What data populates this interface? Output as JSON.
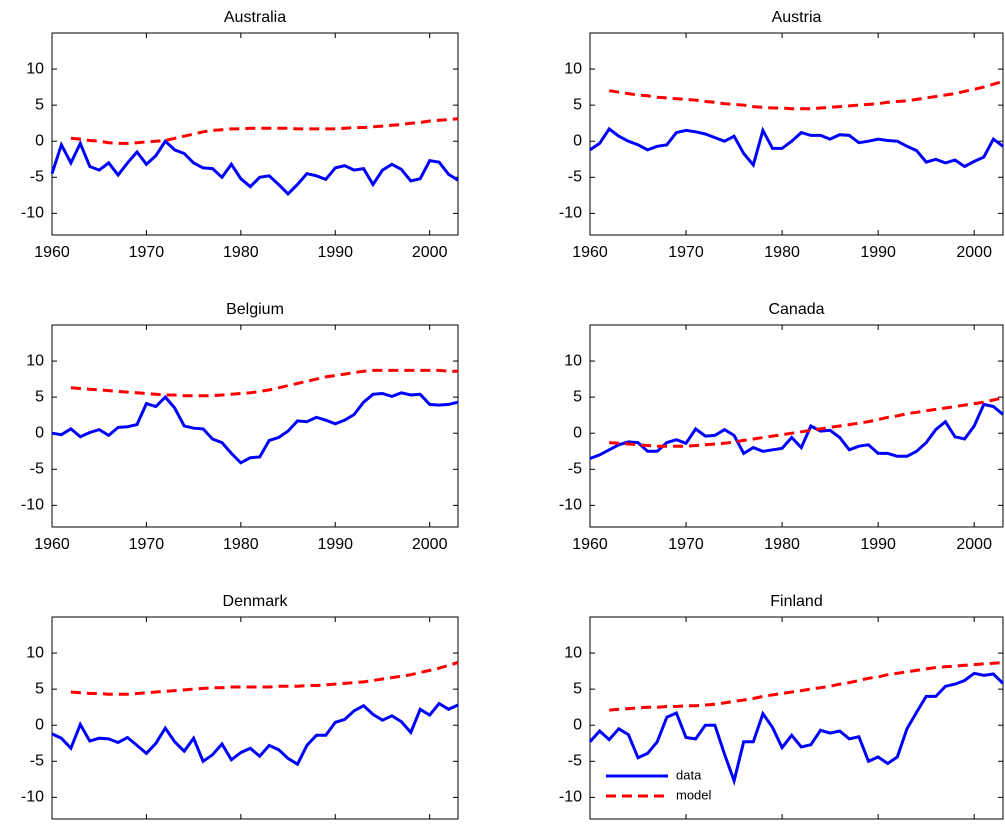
{
  "chart_data": [
    {
      "type": "line",
      "title": "Australia",
      "x": [
        1960,
        1961,
        1962,
        1963,
        1964,
        1965,
        1966,
        1967,
        1968,
        1969,
        1970,
        1971,
        1972,
        1973,
        1974,
        1975,
        1976,
        1977,
        1978,
        1979,
        1980,
        1981,
        1982,
        1983,
        1984,
        1985,
        1986,
        1987,
        1988,
        1989,
        1990,
        1991,
        1992,
        1993,
        1994,
        1995,
        1996,
        1997,
        1998,
        1999,
        2000,
        2001,
        2002,
        2003
      ],
      "series": [
        {
          "color": "#0000ff",
          "dash": false,
          "values": [
            -4.5,
            -0.5,
            -3,
            -0.3,
            -3.5,
            -4,
            -3,
            -4.7,
            -3,
            -1.5,
            -3.2,
            -2,
            0,
            -1.2,
            -1.7,
            -3,
            -3.7,
            -3.8,
            -5,
            -3.2,
            -5.2,
            -6.3,
            -5,
            -4.8,
            -6,
            -7.3,
            -6,
            -4.5,
            -4.8,
            -5.3,
            -3.7,
            -3.4,
            -4,
            -3.8,
            -6,
            -4,
            -3.2,
            -3.9,
            -5.5,
            -5.2,
            -2.7,
            -2.9,
            -4.6,
            -5.4
          ]
        },
        {
          "color": "#ff0000",
          "dash": true,
          "values": [
            null,
            null,
            0.4,
            0.3,
            0.1,
            0,
            -0.2,
            -0.3,
            -0.3,
            -0.2,
            -0.1,
            0,
            0.1,
            0.4,
            0.7,
            1,
            1.3,
            1.5,
            1.6,
            1.7,
            1.7,
            1.8,
            1.8,
            1.8,
            1.8,
            1.8,
            1.7,
            1.7,
            1.7,
            1.7,
            1.7,
            1.8,
            1.9,
            1.9,
            2,
            2.1,
            2.2,
            2.3,
            2.5,
            2.6,
            2.8,
            2.9,
            3,
            3.1
          ]
        }
      ],
      "xlim": [
        1960,
        2003
      ],
      "ylim": [
        -13,
        15
      ],
      "xticks": [
        1960,
        1970,
        1980,
        1990,
        2000
      ],
      "yticks": [
        -10,
        -5,
        0,
        5,
        10
      ]
    },
    {
      "type": "line",
      "title": "Austria",
      "x": [
        1960,
        1961,
        1962,
        1963,
        1964,
        1965,
        1966,
        1967,
        1968,
        1969,
        1970,
        1971,
        1972,
        1973,
        1974,
        1975,
        1976,
        1977,
        1978,
        1979,
        1980,
        1981,
        1982,
        1983,
        1984,
        1985,
        1986,
        1987,
        1988,
        1989,
        1990,
        1991,
        1992,
        1993,
        1994,
        1995,
        1996,
        1997,
        1998,
        1999,
        2000,
        2001,
        2002,
        2003
      ],
      "series": [
        {
          "color": "#0000ff",
          "dash": false,
          "values": [
            -1.2,
            -0.3,
            1.7,
            0.7,
            0,
            -0.5,
            -1.2,
            -0.7,
            -0.5,
            1.2,
            1.5,
            1.3,
            1,
            0.5,
            0,
            0.7,
            -1.7,
            -3.3,
            1.5,
            -1,
            -1,
            0,
            1.2,
            0.8,
            0.8,
            0.3,
            0.9,
            0.8,
            -0.2,
            0,
            0.3,
            0.1,
            0,
            -0.7,
            -1.3,
            -2.9,
            -2.5,
            -3,
            -2.6,
            -3.5,
            -2.8,
            -2.2,
            0.3,
            -0.7
          ]
        },
        {
          "color": "#ff0000",
          "dash": true,
          "values": [
            null,
            null,
            7,
            6.8,
            6.6,
            6.4,
            6.3,
            6.1,
            6,
            5.9,
            5.8,
            5.7,
            5.5,
            5.4,
            5.2,
            5.1,
            5,
            4.8,
            4.7,
            4.6,
            4.6,
            4.5,
            4.5,
            4.5,
            4.6,
            4.7,
            4.8,
            4.9,
            5,
            5.1,
            5.2,
            5.4,
            5.5,
            5.6,
            5.8,
            6,
            6.2,
            6.4,
            6.6,
            6.9,
            7.2,
            7.5,
            7.9,
            8.3
          ]
        }
      ],
      "xlim": [
        1960,
        2003
      ],
      "ylim": [
        -13,
        15
      ],
      "xticks": [
        1960,
        1970,
        1980,
        1990,
        2000
      ],
      "yticks": [
        -10,
        -5,
        0,
        5,
        10
      ]
    },
    {
      "type": "line",
      "title": "Belgium",
      "x": [
        1960,
        1961,
        1962,
        1963,
        1964,
        1965,
        1966,
        1967,
        1968,
        1969,
        1970,
        1971,
        1972,
        1973,
        1974,
        1975,
        1976,
        1977,
        1978,
        1979,
        1980,
        1981,
        1982,
        1983,
        1984,
        1985,
        1986,
        1987,
        1988,
        1989,
        1990,
        1991,
        1992,
        1993,
        1994,
        1995,
        1996,
        1997,
        1998,
        1999,
        2000,
        2001,
        2002,
        2003
      ],
      "series": [
        {
          "color": "#0000ff",
          "dash": false,
          "values": [
            0,
            -0.2,
            0.6,
            -0.5,
            0.1,
            0.5,
            -0.3,
            0.8,
            0.9,
            1.2,
            4.1,
            3.7,
            5,
            3.5,
            1,
            0.7,
            0.6,
            -0.8,
            -1.3,
            -2.8,
            -4.1,
            -3.4,
            -3.3,
            -1,
            -0.6,
            0.3,
            1.7,
            1.6,
            2.2,
            1.8,
            1.3,
            1.8,
            2.6,
            4.3,
            5.4,
            5.5,
            5.1,
            5.6,
            5.3,
            5.4,
            4,
            3.9,
            4,
            4.3
          ]
        },
        {
          "color": "#ff0000",
          "dash": true,
          "values": [
            null,
            null,
            6.3,
            6.2,
            6.1,
            6,
            5.9,
            5.8,
            5.7,
            5.6,
            5.5,
            5.4,
            5.3,
            5.3,
            5.2,
            5.2,
            5.2,
            5.2,
            5.3,
            5.4,
            5.5,
            5.6,
            5.8,
            6,
            6.3,
            6.6,
            6.9,
            7.2,
            7.5,
            7.8,
            8,
            8.2,
            8.4,
            8.6,
            8.7,
            8.7,
            8.7,
            8.7,
            8.7,
            8.7,
            8.7,
            8.7,
            8.6,
            8.6
          ]
        }
      ],
      "xlim": [
        1960,
        2003
      ],
      "ylim": [
        -13,
        15
      ],
      "xticks": [
        1960,
        1970,
        1980,
        1990,
        2000
      ],
      "yticks": [
        -10,
        -5,
        0,
        5,
        10
      ]
    },
    {
      "type": "line",
      "title": "Canada",
      "x": [
        1960,
        1961,
        1962,
        1963,
        1964,
        1965,
        1966,
        1967,
        1968,
        1969,
        1970,
        1971,
        1972,
        1973,
        1974,
        1975,
        1976,
        1977,
        1978,
        1979,
        1980,
        1981,
        1982,
        1983,
        1984,
        1985,
        1986,
        1987,
        1988,
        1989,
        1990,
        1991,
        1992,
        1993,
        1994,
        1995,
        1996,
        1997,
        1998,
        1999,
        2000,
        2001,
        2002,
        2003
      ],
      "series": [
        {
          "color": "#0000ff",
          "dash": false,
          "values": [
            -3.5,
            -3,
            -2.3,
            -1.6,
            -1.2,
            -1.3,
            -2.5,
            -2.5,
            -1.3,
            -0.9,
            -1.4,
            0.6,
            -0.4,
            -0.3,
            0.5,
            -0.3,
            -2.8,
            -2,
            -2.5,
            -2.3,
            -2.1,
            -0.6,
            -2,
            1,
            0.3,
            0.4,
            -0.6,
            -2.3,
            -1.8,
            -1.6,
            -2.8,
            -2.8,
            -3.2,
            -3.2,
            -2.5,
            -1.3,
            0.5,
            1.6,
            -0.5,
            -0.8,
            1,
            4,
            3.7,
            2.6
          ]
        },
        {
          "color": "#ff0000",
          "dash": true,
          "values": [
            null,
            null,
            -1.3,
            -1.4,
            -1.5,
            -1.6,
            -1.7,
            -1.8,
            -1.8,
            -1.8,
            -1.8,
            -1.7,
            -1.6,
            -1.5,
            -1.4,
            -1.2,
            -1,
            -0.8,
            -0.6,
            -0.4,
            -0.2,
            0,
            0.2,
            0.4,
            0.6,
            0.8,
            1,
            1.2,
            1.4,
            1.6,
            1.9,
            2.2,
            2.4,
            2.7,
            2.9,
            3.1,
            3.3,
            3.5,
            3.7,
            3.9,
            4.1,
            4.3,
            4.6,
            4.9
          ]
        }
      ],
      "xlim": [
        1960,
        2003
      ],
      "ylim": [
        -13,
        15
      ],
      "xticks": [
        1960,
        1970,
        1980,
        1990,
        2000
      ],
      "yticks": [
        -10,
        -5,
        0,
        5,
        10
      ]
    },
    {
      "type": "line",
      "title": "Denmark",
      "x": [
        1960,
        1961,
        1962,
        1963,
        1964,
        1965,
        1966,
        1967,
        1968,
        1969,
        1970,
        1971,
        1972,
        1973,
        1974,
        1975,
        1976,
        1977,
        1978,
        1979,
        1980,
        1981,
        1982,
        1983,
        1984,
        1985,
        1986,
        1987,
        1988,
        1989,
        1990,
        1991,
        1992,
        1993,
        1994,
        1995,
        1996,
        1997,
        1998,
        1999,
        2000,
        2001,
        2002,
        2003
      ],
      "series": [
        {
          "color": "#0000ff",
          "dash": false,
          "values": [
            -1.2,
            -1.8,
            -3.2,
            0.1,
            -2.2,
            -1.8,
            -1.9,
            -2.4,
            -1.7,
            -2.8,
            -3.9,
            -2.5,
            -0.4,
            -2.3,
            -3.6,
            -1.8,
            -5,
            -4.1,
            -2.6,
            -4.8,
            -3.8,
            -3.2,
            -4.3,
            -2.8,
            -3.4,
            -4.6,
            -5.4,
            -2.8,
            -1.4,
            -1.4,
            0.4,
            0.8,
            2,
            2.7,
            1.5,
            0.7,
            1.3,
            0.5,
            -1,
            2.2,
            1.4,
            3,
            2.2,
            2.8
          ]
        },
        {
          "color": "#ff0000",
          "dash": true,
          "values": [
            null,
            null,
            4.6,
            4.5,
            4.4,
            4.4,
            4.3,
            4.3,
            4.3,
            4.4,
            4.5,
            4.6,
            4.7,
            4.8,
            4.9,
            5,
            5.1,
            5.2,
            5.2,
            5.3,
            5.3,
            5.3,
            5.3,
            5.3,
            5.4,
            5.4,
            5.4,
            5.5,
            5.5,
            5.6,
            5.7,
            5.8,
            5.9,
            6,
            6.2,
            6.4,
            6.6,
            6.8,
            7,
            7.3,
            7.6,
            7.9,
            8.3,
            8.7
          ]
        }
      ],
      "xlim": [
        1960,
        2003
      ],
      "ylim": [
        -13,
        15
      ],
      "xticks": [
        1960,
        1970,
        1980,
        1990,
        2000
      ],
      "yticks": [
        -10,
        -5,
        0,
        5,
        10
      ]
    },
    {
      "type": "line",
      "title": "Finland",
      "x": [
        1960,
        1961,
        1962,
        1963,
        1964,
        1965,
        1966,
        1967,
        1968,
        1969,
        1970,
        1971,
        1972,
        1973,
        1974,
        1975,
        1976,
        1977,
        1978,
        1979,
        1980,
        1981,
        1982,
        1983,
        1984,
        1985,
        1986,
        1987,
        1988,
        1989,
        1990,
        1991,
        1992,
        1993,
        1994,
        1995,
        1996,
        1997,
        1998,
        1999,
        2000,
        2001,
        2002,
        2003
      ],
      "series": [
        {
          "name": "data",
          "color": "#0000ff",
          "dash": false,
          "values": [
            -2.3,
            -0.8,
            -2,
            -0.5,
            -1.3,
            -4.5,
            -3.9,
            -2.3,
            1.1,
            1.7,
            -1.7,
            -1.9,
            0,
            0,
            -4,
            -7.7,
            -2.3,
            -2.3,
            1.6,
            -0.3,
            -3.1,
            -1.4,
            -3,
            -2.7,
            -0.7,
            -1.1,
            -0.8,
            -1.9,
            -1.6,
            -5,
            -4.4,
            -5.3,
            -4.4,
            -0.5,
            1.8,
            4,
            4,
            5.4,
            5.7,
            6.2,
            7.2,
            6.9,
            7.1,
            5.8
          ]
        },
        {
          "name": "model",
          "color": "#ff0000",
          "dash": true,
          "values": [
            null,
            null,
            2.1,
            2.2,
            2.3,
            2.4,
            2.5,
            2.5,
            2.6,
            2.6,
            2.7,
            2.7,
            2.8,
            2.9,
            3.1,
            3.3,
            3.5,
            3.7,
            4,
            4.2,
            4.4,
            4.6,
            4.8,
            5,
            5.2,
            5.4,
            5.7,
            5.9,
            6.2,
            6.5,
            6.7,
            7,
            7.2,
            7.4,
            7.6,
            7.8,
            8,
            8.1,
            8.2,
            8.3,
            8.4,
            8.5,
            8.6,
            8.7
          ]
        }
      ],
      "legend": "lower left",
      "xlim": [
        1960,
        2003
      ],
      "ylim": [
        -13,
        15
      ],
      "xticks": [
        1960,
        1970,
        1980,
        1990,
        2000
      ],
      "yticks": [
        -10,
        -5,
        0,
        5,
        10
      ]
    }
  ]
}
